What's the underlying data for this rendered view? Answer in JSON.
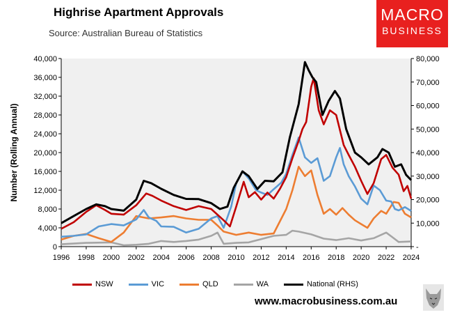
{
  "header": {
    "title": "Highrise Apartment Approvals",
    "subtitle": "Source: Australian Bureau of Statistics",
    "logo_line1": "MACRO",
    "logo_line2": "BUSINESS"
  },
  "footer": {
    "url": "www.macrobusiness.com.au"
  },
  "chart_data": {
    "type": "line",
    "ylabel": "Number (Rolling Annual)",
    "xlabel": "",
    "x_ticks": [
      "1996",
      "1998",
      "2000",
      "2002",
      "2004",
      "2006",
      "2008",
      "2010",
      "2012",
      "2014",
      "2016",
      "2018",
      "2020",
      "2022",
      "2024"
    ],
    "y_left_ticks": [
      "0",
      "4,000",
      "8,000",
      "12,000",
      "16,000",
      "20,000",
      "24,000",
      "28,000",
      "32,000",
      "36,000",
      "40,000"
    ],
    "y_right_ticks": [
      "-",
      "10,000",
      "20,000",
      "30,000",
      "40,000",
      "50,000",
      "60,000",
      "70,000",
      "80,000"
    ],
    "ylim_left": [
      0,
      40000
    ],
    "ylim_right": [
      0,
      80000
    ],
    "xlim": [
      1996,
      2024
    ],
    "grid": false,
    "legend_position": "bottom",
    "series": [
      {
        "name": "NSW",
        "color": "#c00000",
        "axis": "left",
        "points": [
          [
            1996,
            3800
          ],
          [
            1997,
            5200
          ],
          [
            1998,
            7400
          ],
          [
            1998.8,
            8800
          ],
          [
            1999.5,
            7800
          ],
          [
            2000,
            7000
          ],
          [
            2001,
            6800
          ],
          [
            2002,
            8800
          ],
          [
            2002.8,
            11300
          ],
          [
            2003.3,
            10800
          ],
          [
            2004,
            9800
          ],
          [
            2005,
            8600
          ],
          [
            2006,
            7800
          ],
          [
            2007,
            8600
          ],
          [
            2008,
            8000
          ],
          [
            2009,
            5600
          ],
          [
            2009.5,
            4300
          ],
          [
            2010,
            8500
          ],
          [
            2010.6,
            13800
          ],
          [
            2011,
            10500
          ],
          [
            2011.5,
            11600
          ],
          [
            2012,
            10000
          ],
          [
            2012.5,
            11500
          ],
          [
            2013,
            10200
          ],
          [
            2013.5,
            12300
          ],
          [
            2014,
            14800
          ],
          [
            2014.5,
            18800
          ],
          [
            2015,
            22500
          ],
          [
            2015.3,
            25000
          ],
          [
            2015.6,
            26500
          ],
          [
            2016,
            34000
          ],
          [
            2016.2,
            35800
          ],
          [
            2016.6,
            29000
          ],
          [
            2017,
            26000
          ],
          [
            2017.5,
            29000
          ],
          [
            2018,
            28000
          ],
          [
            2018.6,
            21600
          ],
          [
            2019,
            19500
          ],
          [
            2019.5,
            17000
          ],
          [
            2020,
            14000
          ],
          [
            2020.5,
            11200
          ],
          [
            2021,
            13500
          ],
          [
            2021.6,
            18600
          ],
          [
            2022,
            19500
          ],
          [
            2022.5,
            16800
          ],
          [
            2023,
            15300
          ],
          [
            2023.4,
            11800
          ],
          [
            2023.7,
            12900
          ],
          [
            2024,
            10200
          ]
        ]
      },
      {
        "name": "VIC",
        "color": "#5b9bd5",
        "axis": "left",
        "points": [
          [
            1996,
            2100
          ],
          [
            1997,
            2300
          ],
          [
            1998,
            2600
          ],
          [
            1999,
            4300
          ],
          [
            2000,
            4800
          ],
          [
            2001,
            4500
          ],
          [
            2002,
            5800
          ],
          [
            2002.6,
            7800
          ],
          [
            2003,
            6200
          ],
          [
            2003.6,
            5500
          ],
          [
            2004,
            4300
          ],
          [
            2005,
            4200
          ],
          [
            2006,
            3000
          ],
          [
            2007,
            3800
          ],
          [
            2008,
            6000
          ],
          [
            2008.5,
            6500
          ],
          [
            2009,
            4000
          ],
          [
            2009.6,
            8500
          ],
          [
            2010,
            13500
          ],
          [
            2010.5,
            16000
          ],
          [
            2011,
            14500
          ],
          [
            2011.6,
            12000
          ],
          [
            2012,
            11500
          ],
          [
            2012.5,
            11000
          ],
          [
            2013,
            12200
          ],
          [
            2013.6,
            13600
          ],
          [
            2014,
            15500
          ],
          [
            2014.5,
            19500
          ],
          [
            2015,
            23200
          ],
          [
            2015.5,
            19000
          ],
          [
            2016,
            17800
          ],
          [
            2016.5,
            18800
          ],
          [
            2017,
            14000
          ],
          [
            2017.5,
            15000
          ],
          [
            2018,
            19000
          ],
          [
            2018.3,
            21000
          ],
          [
            2018.6,
            17500
          ],
          [
            2019,
            15000
          ],
          [
            2019.5,
            12800
          ],
          [
            2020,
            10200
          ],
          [
            2020.5,
            9000
          ],
          [
            2021,
            13000
          ],
          [
            2021.5,
            12000
          ],
          [
            2022,
            9800
          ],
          [
            2022.4,
            9600
          ],
          [
            2022.7,
            8000
          ],
          [
            2023,
            7700
          ],
          [
            2023.5,
            8400
          ],
          [
            2024,
            7600
          ]
        ]
      },
      {
        "name": "QLD",
        "color": "#ed7d31",
        "axis": "left",
        "points": [
          [
            1996,
            1500
          ],
          [
            1997,
            2300
          ],
          [
            1998,
            2700
          ],
          [
            1999,
            1800
          ],
          [
            2000,
            1000
          ],
          [
            2001,
            3000
          ],
          [
            2002,
            6500
          ],
          [
            2003,
            6000
          ],
          [
            2004,
            6200
          ],
          [
            2005,
            6500
          ],
          [
            2006,
            6000
          ],
          [
            2007,
            5700
          ],
          [
            2008,
            5700
          ],
          [
            2008.5,
            4500
          ],
          [
            2009,
            3200
          ],
          [
            2010,
            2500
          ],
          [
            2011,
            3000
          ],
          [
            2012,
            2500
          ],
          [
            2013,
            2800
          ],
          [
            2014,
            8000
          ],
          [
            2014.5,
            12000
          ],
          [
            2015,
            17000
          ],
          [
            2015.5,
            15000
          ],
          [
            2016,
            16200
          ],
          [
            2016.5,
            11000
          ],
          [
            2017,
            7000
          ],
          [
            2017.5,
            8000
          ],
          [
            2018,
            6800
          ],
          [
            2018.5,
            8200
          ],
          [
            2019,
            6800
          ],
          [
            2019.5,
            5600
          ],
          [
            2020,
            4800
          ],
          [
            2020.5,
            4000
          ],
          [
            2021,
            6000
          ],
          [
            2021.6,
            7600
          ],
          [
            2022,
            7000
          ],
          [
            2022.6,
            9500
          ],
          [
            2023,
            9300
          ],
          [
            2023.5,
            7000
          ],
          [
            2024,
            6200
          ]
        ]
      },
      {
        "name": "WA",
        "color": "#a5a5a5",
        "axis": "left",
        "points": [
          [
            1996,
            500
          ],
          [
            1998,
            800
          ],
          [
            2000,
            900
          ],
          [
            2001,
            300
          ],
          [
            2002,
            400
          ],
          [
            2003,
            600
          ],
          [
            2004,
            1200
          ],
          [
            2005,
            1000
          ],
          [
            2006,
            1200
          ],
          [
            2007,
            1500
          ],
          [
            2008,
            2300
          ],
          [
            2008.5,
            3000
          ],
          [
            2009,
            600
          ],
          [
            2010,
            800
          ],
          [
            2011,
            900
          ],
          [
            2012,
            1600
          ],
          [
            2013,
            2300
          ],
          [
            2014,
            2500
          ],
          [
            2014.5,
            3400
          ],
          [
            2015,
            3200
          ],
          [
            2016,
            2600
          ],
          [
            2017,
            1700
          ],
          [
            2018,
            1400
          ],
          [
            2019,
            1800
          ],
          [
            2020,
            1300
          ],
          [
            2021,
            1800
          ],
          [
            2022,
            3000
          ],
          [
            2022.5,
            2000
          ],
          [
            2023,
            1000
          ],
          [
            2024,
            1100
          ]
        ]
      },
      {
        "name": "National (RHS)",
        "color": "#000000",
        "axis": "right",
        "points": [
          [
            1996,
            10000
          ],
          [
            1997,
            13000
          ],
          [
            1998,
            16000
          ],
          [
            1998.8,
            18000
          ],
          [
            1999.5,
            17200
          ],
          [
            2000,
            16000
          ],
          [
            2001,
            15300
          ],
          [
            2002,
            20000
          ],
          [
            2002.6,
            28000
          ],
          [
            2003.2,
            27000
          ],
          [
            2004,
            24600
          ],
          [
            2005,
            22000
          ],
          [
            2006,
            20300
          ],
          [
            2007,
            20200
          ],
          [
            2008,
            18500
          ],
          [
            2008.7,
            16000
          ],
          [
            2009.3,
            17000
          ],
          [
            2009.8,
            25000
          ],
          [
            2010.5,
            32000
          ],
          [
            2011,
            30000
          ],
          [
            2011.7,
            24500
          ],
          [
            2012.3,
            28000
          ],
          [
            2013,
            27800
          ],
          [
            2013.7,
            31600
          ],
          [
            2014.3,
            46600
          ],
          [
            2015,
            60600
          ],
          [
            2015.5,
            78500
          ],
          [
            2015.8,
            75000
          ],
          [
            2016.1,
            72000
          ],
          [
            2016.4,
            70000
          ],
          [
            2016.9,
            56000
          ],
          [
            2017.4,
            62000
          ],
          [
            2017.9,
            66200
          ],
          [
            2018.3,
            63000
          ],
          [
            2018.8,
            50000
          ],
          [
            2019.5,
            40000
          ],
          [
            2020,
            38000
          ],
          [
            2020.6,
            35000
          ],
          [
            2021.3,
            38000
          ],
          [
            2021.7,
            41500
          ],
          [
            2022.2,
            40000
          ],
          [
            2022.7,
            34000
          ],
          [
            2023.2,
            35000
          ],
          [
            2023.6,
            30500
          ],
          [
            2024,
            28300
          ]
        ]
      }
    ]
  }
}
